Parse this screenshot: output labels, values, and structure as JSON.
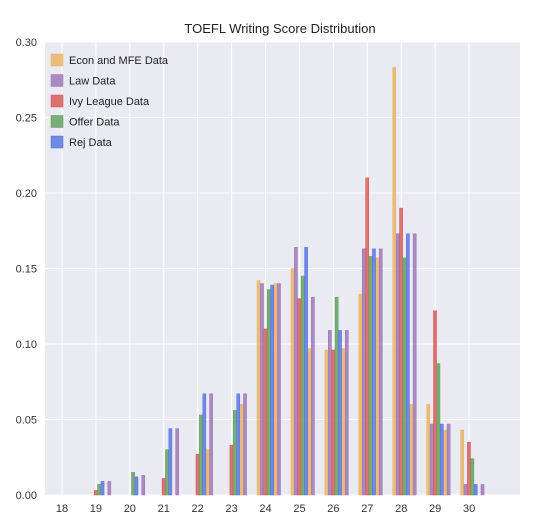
{
  "chart_data": {
    "type": "bar",
    "title": "TOEFL Writing Score Distribution",
    "xlabel": "",
    "ylabel": "",
    "ylim": [
      0,
      0.3
    ],
    "xlim": [
      17.5,
      31.5
    ],
    "x_ticks": [
      "18",
      "19",
      "20",
      "21",
      "22",
      "23",
      "24",
      "25",
      "26",
      "27",
      "28",
      "29",
      "30"
    ],
    "y_ticks": [
      "0.00",
      "0.05",
      "0.10",
      "0.15",
      "0.20",
      "0.25",
      "0.30"
    ],
    "categories": [
      19,
      19.5,
      20,
      20.5,
      21,
      21.5,
      22,
      22.5,
      23,
      23.5,
      24,
      24.5,
      25,
      25.5,
      26,
      26.5,
      27,
      27.5,
      28,
      28.5,
      29,
      29.5,
      30,
      30.5
    ],
    "series": [
      {
        "name": "Econ and MFE Data",
        "color": "#e8b15c",
        "values": [
          0,
          0,
          0,
          0,
          0,
          0,
          0,
          0.03,
          0,
          0.06,
          0.142,
          0.14,
          0.15,
          0.097,
          0.096,
          0.097,
          0.133,
          0.157,
          0.283,
          0.06,
          0.06,
          0.043,
          0.043,
          0
        ]
      },
      {
        "name": "Law Data",
        "color": "#9b72b5",
        "values": [
          0,
          0.009,
          0,
          0.013,
          0,
          0.044,
          0,
          0.067,
          0,
          0.067,
          0.14,
          0.14,
          0.164,
          0.131,
          0.109,
          0.109,
          0.163,
          0.163,
          0.173,
          0.173,
          0.047,
          0.047,
          0.007,
          0.007
        ]
      },
      {
        "name": "Ivy League Data",
        "color": "#d9534f",
        "values": [
          0.003,
          0,
          0,
          0,
          0.011,
          0,
          0.027,
          0,
          0.033,
          0,
          0.11,
          0,
          0.13,
          0,
          0.096,
          0,
          0.21,
          0,
          0.19,
          0,
          0.122,
          0,
          0.035,
          0
        ]
      },
      {
        "name": "Offer Data",
        "color": "#5a9e58",
        "values": [
          0.007,
          0,
          0.015,
          0,
          0.03,
          0,
          0.053,
          0,
          0.056,
          0,
          0.136,
          0,
          0.145,
          0,
          0.131,
          0,
          0.158,
          0,
          0.157,
          0,
          0.087,
          0,
          0.024,
          0
        ]
      },
      {
        "name": "Rej Data",
        "color": "#5470e0",
        "values": [
          0.009,
          0,
          0.012,
          0,
          0.044,
          0,
          0.067,
          0,
          0.067,
          0,
          0.139,
          0,
          0.164,
          0,
          0.109,
          0,
          0.163,
          0,
          0.173,
          0,
          0.047,
          0,
          0.007,
          0
        ]
      }
    ],
    "grid": true,
    "legend_position": "top-left",
    "background": "#eaeaf2"
  }
}
